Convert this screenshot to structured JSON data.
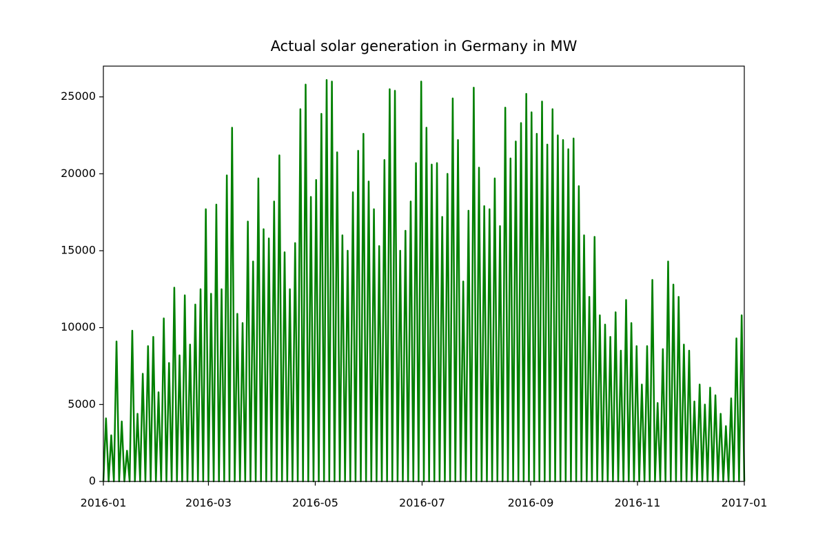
{
  "chart_data": {
    "type": "line",
    "title": "Actual solar generation in Germany in MW",
    "x": [
      0,
      1.5,
      3,
      4.5,
      6,
      7.5,
      9,
      10.5,
      12,
      13.5,
      15,
      16.5,
      18,
      19.5,
      21,
      22.5,
      24,
      25.5,
      27,
      28.5,
      30,
      31.5,
      33,
      34.5,
      36,
      37.5,
      39,
      40.5,
      42,
      43.5,
      45,
      46.5,
      48,
      49.5,
      51,
      52.5,
      54,
      55.5,
      57,
      58.5,
      60,
      61.5,
      63,
      64.5,
      66,
      67.5,
      69,
      70.5,
      72,
      73.5,
      75,
      76.5,
      78,
      79.5,
      81,
      82.5,
      84,
      85.5,
      87,
      88.5,
      90,
      91.5,
      93,
      94.5,
      96,
      97.5,
      99,
      100.5,
      102,
      103.5,
      105,
      106.5,
      108,
      109.5,
      111,
      112.5,
      114,
      115.5,
      117,
      118.5,
      120,
      121.5,
      123,
      124.5,
      126,
      127.5,
      129,
      130.5,
      132,
      133.5,
      135,
      136.5,
      138,
      139.5,
      141,
      142.5,
      144,
      145.5,
      147,
      148.5,
      150,
      151.5,
      153,
      154.5,
      156,
      157.5,
      159,
      160.5,
      162,
      163.5,
      165,
      166.5,
      168,
      169.5,
      171,
      172.5,
      174,
      175.5,
      177,
      178.5,
      180,
      181.5,
      183,
      184.5,
      186,
      187.5,
      189,
      190.5,
      192,
      193.5,
      195,
      196.5,
      198,
      199.5,
      201,
      202.5,
      204,
      205.5,
      207,
      208.5,
      210,
      211.5,
      213,
      214.5,
      216,
      217.5,
      219,
      220.5,
      222,
      223.5,
      225,
      226.5,
      228,
      229.5,
      231,
      232.5,
      234,
      235.5,
      237,
      238.5,
      240,
      241.5,
      243,
      244.5,
      246,
      247.5,
      249,
      250.5,
      252,
      253.5,
      255,
      256.5,
      258,
      259.5,
      261,
      262.5,
      264,
      265.5,
      267,
      268.5,
      270,
      271.5,
      273,
      274.5,
      276,
      277.5,
      279,
      280.5,
      282,
      283.5,
      285,
      286.5,
      288,
      289.5,
      291,
      292.5,
      294,
      295.5,
      297,
      298.5,
      300,
      301.5,
      303,
      304.5,
      306,
      307.5,
      309,
      310.5,
      312,
      313.5,
      315,
      316.5,
      318,
      319.5,
      321,
      322.5,
      324,
      325.5,
      327,
      328.5,
      330,
      331.5,
      333,
      334.5,
      336,
      337.5,
      339,
      340.5,
      342,
      343.5,
      345,
      346.5,
      348,
      349.5,
      351,
      352.5,
      354,
      355.5,
      357,
      358.5,
      360,
      361.5,
      363,
      364.5,
      366
    ],
    "series": [
      {
        "color": "#008000",
        "values": [
          0,
          4100,
          0,
          3000,
          0,
          9100,
          0,
          3900,
          0,
          2000,
          0,
          9800,
          0,
          4400,
          0,
          7000,
          0,
          8800,
          0,
          9400,
          0,
          5800,
          0,
          10600,
          0,
          7700,
          0,
          12600,
          0,
          8200,
          0,
          12100,
          0,
          8900,
          0,
          11500,
          0,
          12500,
          0,
          17700,
          0,
          12200,
          0,
          18000,
          0,
          12500,
          0,
          19900,
          0,
          23000,
          0,
          10900,
          0,
          10300,
          0,
          16900,
          0,
          14300,
          0,
          19700,
          0,
          16400,
          0,
          15800,
          0,
          18200,
          0,
          21200,
          0,
          14900,
          0,
          12500,
          0,
          15500,
          0,
          24200,
          0,
          25800,
          0,
          18500,
          0,
          19600,
          0,
          23900,
          0,
          26100,
          0,
          26000,
          0,
          21400,
          0,
          16000,
          0,
          15000,
          0,
          18800,
          0,
          21500,
          0,
          22600,
          0,
          19500,
          0,
          17700,
          0,
          15300,
          0,
          20900,
          0,
          25500,
          0,
          25400,
          0,
          15000,
          0,
          16300,
          0,
          18200,
          0,
          20700,
          0,
          26000,
          0,
          23000,
          0,
          20600,
          0,
          20700,
          0,
          17200,
          0,
          20000,
          0,
          24900,
          0,
          22200,
          0,
          13000,
          0,
          17600,
          0,
          25600,
          0,
          20400,
          0,
          17900,
          0,
          17700,
          0,
          19700,
          0,
          16600,
          0,
          24300,
          0,
          21000,
          0,
          22100,
          0,
          23300,
          0,
          25200,
          0,
          24000,
          0,
          22600,
          0,
          24700,
          0,
          21900,
          0,
          24200,
          0,
          22500,
          0,
          22200,
          0,
          21600,
          0,
          22300,
          0,
          19200,
          0,
          16000,
          0,
          12000,
          0,
          15900,
          0,
          10800,
          0,
          10200,
          0,
          9400,
          0,
          11000,
          0,
          8500,
          0,
          11800,
          0,
          10300,
          0,
          8800,
          0,
          6300,
          0,
          8800,
          0,
          13100,
          0,
          5100,
          0,
          8600,
          0,
          14300,
          0,
          12800,
          0,
          12000,
          0,
          8900,
          0,
          8500,
          0,
          5200,
          0,
          6300,
          0,
          5000,
          0,
          6100,
          0,
          5600,
          0,
          4400,
          0,
          3600,
          0,
          5400,
          0,
          9300,
          0,
          10800,
          0
        ]
      }
    ],
    "xlim": [
      0,
      366
    ],
    "xticks": [
      {
        "value": 0,
        "label": "2016-01"
      },
      {
        "value": 60,
        "label": "2016-03"
      },
      {
        "value": 121,
        "label": "2016-05"
      },
      {
        "value": 182,
        "label": "2016-07"
      },
      {
        "value": 244,
        "label": "2016-09"
      },
      {
        "value": 305,
        "label": "2016-11"
      },
      {
        "value": 366,
        "label": "2017-01"
      }
    ],
    "ylim": [
      0,
      27000
    ],
    "yticks": [
      0,
      5000,
      10000,
      15000,
      20000,
      25000
    ],
    "grid": false
  }
}
